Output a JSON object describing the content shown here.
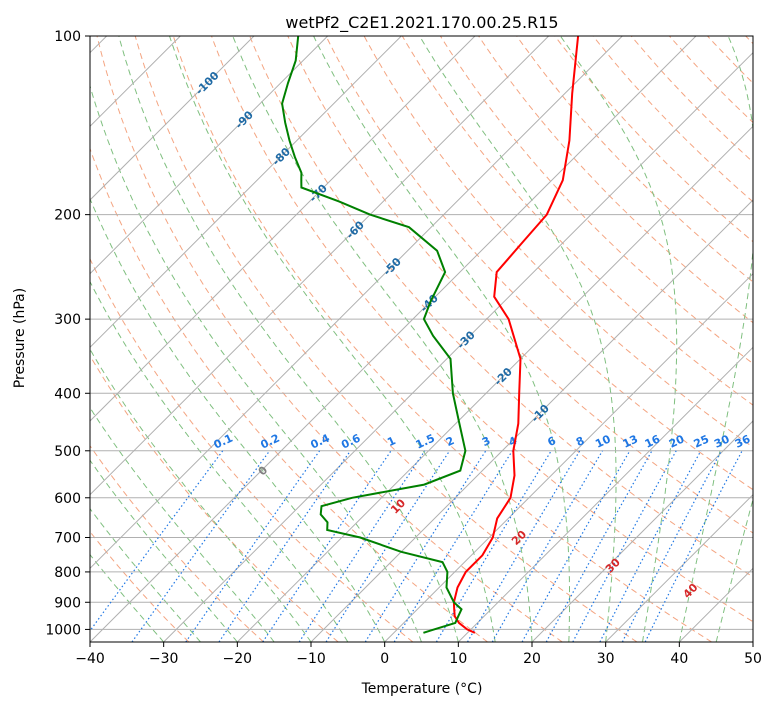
{
  "chart_data": {
    "type": "line",
    "title": "wetPf2_C2E1.2021.170.00.25.R15",
    "xlabel": "Temperature (°C)",
    "ylabel": "Pressure (hPa)",
    "xlim": [
      -40,
      50
    ],
    "ylim": [
      1050,
      100
    ],
    "y_scale": "log",
    "skew": "skew-T",
    "grid": true,
    "x_ticks": [
      "−40",
      "−30",
      "−20",
      "−10",
      "0",
      "10",
      "20",
      "30",
      "40",
      "50"
    ],
    "y_ticks": [
      "100",
      "200",
      "300",
      "400",
      "500",
      "600",
      "700",
      "800",
      "900",
      "1000"
    ],
    "series": [
      {
        "color": "#ff0000",
        "p": [
          1013,
          1000,
          975,
          950,
          925,
          900,
          850,
          800,
          750,
          700,
          650,
          600,
          550,
          500,
          450,
          400,
          350,
          300,
          275,
          250,
          225,
          200,
          175,
          150,
          125,
          100
        ],
        "t": [
          11,
          9.5,
          7.5,
          6,
          5,
          4,
          2.5,
          1.5,
          1.5,
          0.5,
          -1.5,
          -2.5,
          -5,
          -8.5,
          -11.5,
          -15.5,
          -20,
          -27,
          -32,
          -35,
          -35.5,
          -36,
          -38.5,
          -43,
          -49,
          -56
        ]
      },
      {
        "color": "#008000",
        "p": [
          1013,
          1000,
          975,
          950,
          925,
          900,
          850,
          800,
          770,
          740,
          700,
          680,
          660,
          640,
          620,
          600,
          570,
          540,
          500,
          450,
          400,
          350,
          320,
          300,
          280,
          250,
          230,
          210,
          200,
          190,
          180,
          175,
          170,
          160,
          150,
          140,
          130,
          120,
          110,
          100
        ],
        "t": [
          4,
          5,
          7,
          6.5,
          6,
          4,
          1,
          -1,
          -3,
          -10,
          -17.5,
          -23,
          -24,
          -26,
          -27,
          -24,
          -16,
          -13,
          -15,
          -19.5,
          -24.5,
          -29.5,
          -35,
          -38.5,
          -40,
          -42,
          -46,
          -53,
          -60,
          -66,
          -73,
          -74,
          -75,
          -78,
          -81,
          -84,
          -87,
          -89,
          -91,
          -94
        ]
      }
    ],
    "mixing_ratio_labels": [
      "0.1",
      "0.2",
      "0.4",
      "0.6",
      "1",
      "1.5",
      "2",
      "3",
      "4",
      "6",
      "8",
      "10",
      "13",
      "16",
      "20",
      "25",
      "30",
      "36"
    ],
    "isotherm_labels": [
      "-100",
      "-90",
      "-80",
      "-70",
      "-60",
      "-50",
      "-40",
      "-30",
      "-20",
      "-10"
    ],
    "moist_adiabat_labels": [
      "0",
      "10",
      "20",
      "30",
      "40"
    ],
    "colors": {
      "isotherm": "#b0b0b0",
      "dry_adiabat": "#f4a582",
      "moist_adiabat": "#7fbf7f",
      "mixing_ratio": "#1f77e4",
      "isotherm_label": "#1f6aa5",
      "moist_label": "#d62728",
      "moist_zero_label": "#808080",
      "temperature": "#ff0000",
      "dewpoint": "#008000"
    }
  }
}
